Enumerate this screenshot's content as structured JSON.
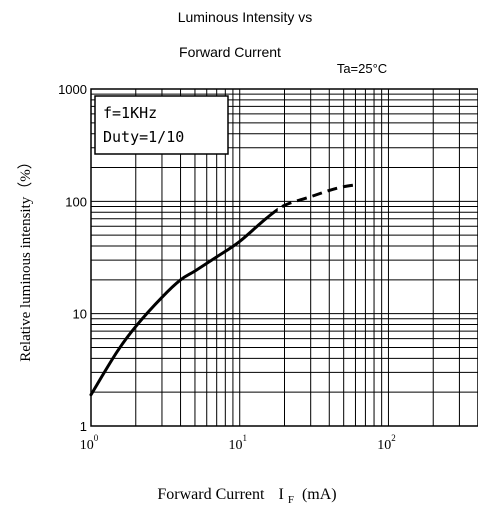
{
  "chart_data": {
    "type": "line",
    "title_line1": "Luminous Intensity vs",
    "title_line2": "Forward Current",
    "condition": "Ta=25°C",
    "annotation_line1": "f=1KHz",
    "annotation_line2": "Duty=1/10",
    "ylabel": "Relative luminous intensity（%）",
    "xlabel_main": "Forward Current",
    "xlabel_symbol": "I",
    "xlabel_subscript": "F",
    "xlabel_unit": "(mA)",
    "x_scale": "log",
    "y_scale": "log",
    "xlim": [
      1,
      400
    ],
    "ylim": [
      1,
      1000
    ],
    "grid": true,
    "x_ticks": [
      {
        "value": 1,
        "base": "10",
        "exp": "0"
      },
      {
        "value": 10,
        "base": "10",
        "exp": "1"
      },
      {
        "value": 100,
        "base": "10",
        "exp": "2"
      }
    ],
    "y_ticks": [
      {
        "value": 1,
        "label": "1"
      },
      {
        "value": 10,
        "label": "10"
      },
      {
        "value": 100,
        "label": "100"
      },
      {
        "value": 1000,
        "label": "1000"
      }
    ],
    "series": [
      {
        "color": "#000000",
        "x": [
          1,
          1.5,
          2,
          3,
          4,
          5,
          7,
          10,
          15,
          20,
          30,
          40,
          50,
          60
        ],
        "y": [
          1.9,
          4.6,
          7.7,
          14,
          20,
          24,
          32,
          44,
          70,
          92,
          110,
          125,
          135,
          140
        ]
      }
    ]
  }
}
